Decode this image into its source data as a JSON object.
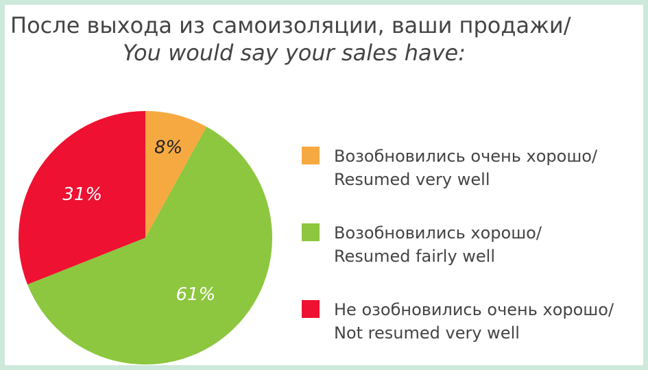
{
  "chart_data": {
    "type": "pie",
    "title": "После выхода из самоизоляции, ваши продажи/",
    "subtitle": "You would say your sales have:",
    "categories": [
      [
        "Возобновились очень хорошо/",
        "Resumed very well"
      ],
      [
        "Возобновились хорошо/",
        "Resumed fairly well"
      ],
      [
        "Не озобновились очень хорошо/",
        "Not resumed very well"
      ]
    ],
    "values": [
      8,
      61,
      31
    ],
    "value_labels": [
      "8%",
      "61%",
      "31%"
    ],
    "colors": [
      "#f7a941",
      "#8dc63f",
      "#ee1131"
    ],
    "label_colors": [
      "#222222",
      "#ffffff",
      "#ffffff"
    ]
  }
}
